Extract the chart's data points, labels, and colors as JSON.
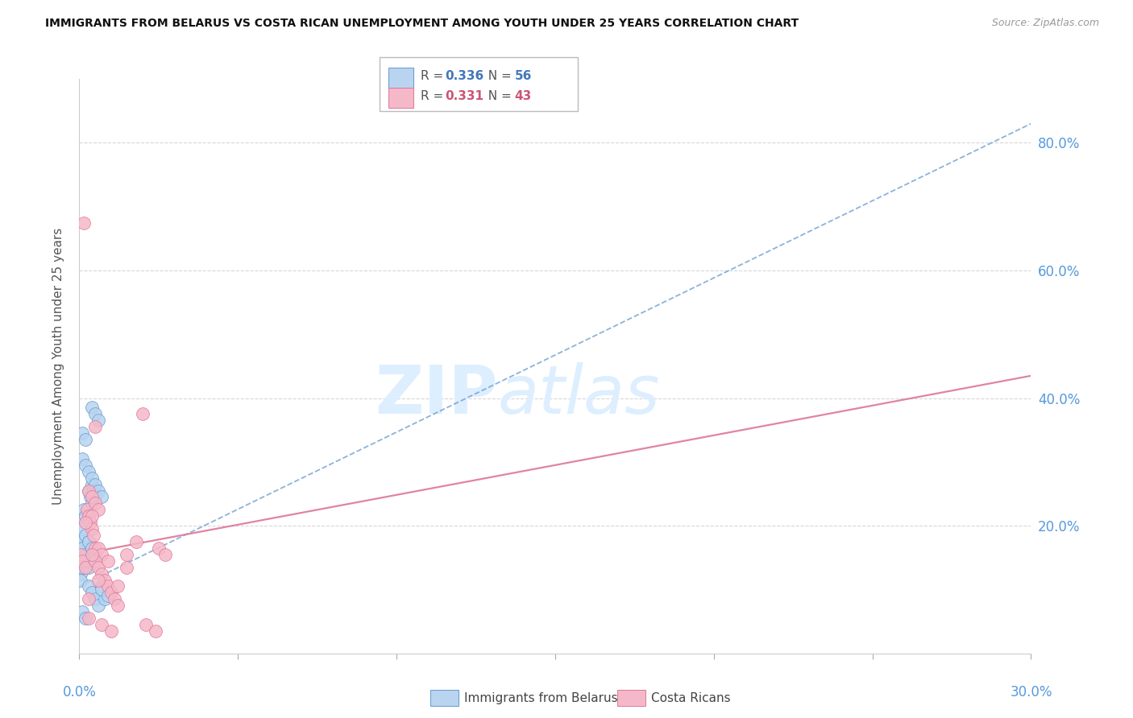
{
  "title": "IMMIGRANTS FROM BELARUS VS COSTA RICAN UNEMPLOYMENT AMONG YOUTH UNDER 25 YEARS CORRELATION CHART",
  "source": "Source: ZipAtlas.com",
  "ylabel": "Unemployment Among Youth under 25 years",
  "ytick_labels": [
    "80.0%",
    "60.0%",
    "40.0%",
    "20.0%"
  ],
  "ytick_values": [
    0.8,
    0.6,
    0.4,
    0.2
  ],
  "legend_1_r": "0.336",
  "legend_1_n": "56",
  "legend_2_r": "0.331",
  "legend_2_n": "43",
  "legend_label_1": "Immigrants from Belarus",
  "legend_label_2": "Costa Ricans",
  "color_blue_fill": "#b8d4f0",
  "color_blue_edge": "#6699cc",
  "color_pink_fill": "#f5b8c8",
  "color_pink_edge": "#dd7799",
  "color_blue_text": "#4477bb",
  "color_pink_text": "#cc5577",
  "color_right_axis": "#5599dd",
  "xlim": [
    0.0,
    0.3
  ],
  "ylim": [
    0.0,
    0.9
  ],
  "blue_trendline_x": [
    0.0,
    0.3
  ],
  "blue_trendline_y": [
    0.105,
    0.83
  ],
  "pink_trendline_x": [
    0.0,
    0.3
  ],
  "pink_trendline_y": [
    0.155,
    0.435
  ],
  "blue_scatter_x": [
    0.0005,
    0.001,
    0.0015,
    0.002,
    0.0005,
    0.001,
    0.0015,
    0.002,
    0.0005,
    0.001,
    0.0015,
    0.002,
    0.0025,
    0.003,
    0.0005,
    0.001,
    0.0015,
    0.002,
    0.0025,
    0.003,
    0.0035,
    0.004,
    0.001,
    0.002,
    0.003,
    0.004,
    0.0045,
    0.005,
    0.001,
    0.002,
    0.003,
    0.004,
    0.005,
    0.006,
    0.001,
    0.002,
    0.003,
    0.004,
    0.005,
    0.006,
    0.007,
    0.001,
    0.002,
    0.003,
    0.004,
    0.005,
    0.006,
    0.007,
    0.008,
    0.001,
    0.002,
    0.003,
    0.004,
    0.005,
    0.007,
    0.009
  ],
  "blue_scatter_y": [
    0.155,
    0.145,
    0.135,
    0.155,
    0.165,
    0.175,
    0.145,
    0.155,
    0.125,
    0.135,
    0.165,
    0.145,
    0.155,
    0.135,
    0.115,
    0.145,
    0.225,
    0.215,
    0.205,
    0.255,
    0.245,
    0.235,
    0.195,
    0.185,
    0.175,
    0.265,
    0.255,
    0.245,
    0.165,
    0.155,
    0.145,
    0.385,
    0.375,
    0.365,
    0.305,
    0.295,
    0.285,
    0.275,
    0.265,
    0.255,
    0.245,
    0.345,
    0.335,
    0.105,
    0.095,
    0.085,
    0.075,
    0.105,
    0.085,
    0.065,
    0.055,
    0.175,
    0.165,
    0.155,
    0.1,
    0.09
  ],
  "pink_scatter_x": [
    0.0005,
    0.001,
    0.0015,
    0.002,
    0.0025,
    0.003,
    0.0035,
    0.004,
    0.0045,
    0.005,
    0.003,
    0.004,
    0.005,
    0.006,
    0.004,
    0.005,
    0.006,
    0.007,
    0.005,
    0.006,
    0.007,
    0.008,
    0.009,
    0.01,
    0.011,
    0.012,
    0.015,
    0.02,
    0.025,
    0.003,
    0.006,
    0.009,
    0.012,
    0.015,
    0.018,
    0.021,
    0.024,
    0.002,
    0.004,
    0.007,
    0.01,
    0.027,
    0.003
  ],
  "pink_scatter_y": [
    0.155,
    0.145,
    0.675,
    0.135,
    0.225,
    0.215,
    0.205,
    0.195,
    0.185,
    0.165,
    0.255,
    0.245,
    0.235,
    0.225,
    0.215,
    0.355,
    0.165,
    0.155,
    0.145,
    0.135,
    0.125,
    0.115,
    0.105,
    0.095,
    0.085,
    0.075,
    0.155,
    0.375,
    0.165,
    0.085,
    0.115,
    0.145,
    0.105,
    0.135,
    0.175,
    0.045,
    0.035,
    0.205,
    0.155,
    0.045,
    0.035,
    0.155,
    0.055
  ]
}
